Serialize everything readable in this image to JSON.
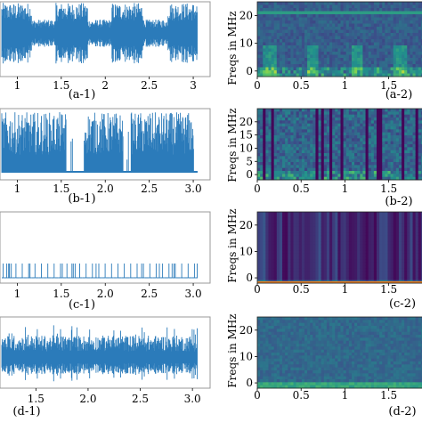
{
  "chart_data": [
    {
      "id": "a-1",
      "type": "line",
      "caption": "(a-1)",
      "xticks": [
        "1",
        "1.5",
        "2",
        "2.5",
        "3"
      ],
      "xlim": [
        0.5,
        3.05
      ],
      "series_color": "#2b7bba",
      "pattern": "bursty_dense"
    },
    {
      "id": "a-2",
      "type": "heatmap",
      "caption": "(a-2)",
      "ylabel": "Freqs in MHz",
      "xticks": [
        "0",
        "0.5",
        "1",
        "1.5"
      ],
      "yticks": [
        "0",
        "10",
        "20"
      ],
      "xlim": [
        0,
        1.9
      ],
      "ylim": [
        -2,
        25
      ],
      "colormap": "viridis",
      "pattern": "bursty"
    },
    {
      "id": "b-1",
      "type": "line",
      "caption": "(b-1)",
      "xticks": [
        "1",
        "1.5",
        "2.0",
        "2.5",
        "3.0"
      ],
      "xlim": [
        0.5,
        3.05
      ],
      "series_color": "#2b7bba",
      "pattern": "spiky_clusters"
    },
    {
      "id": "b-2",
      "type": "heatmap",
      "caption": "(b-2)",
      "ylabel": "Freqs in MHz",
      "xticks": [
        "0",
        "0.5",
        "1",
        "1.5"
      ],
      "yticks": [
        "0",
        "5",
        "10",
        "15",
        "20"
      ],
      "xlim": [
        0,
        1.9
      ],
      "ylim": [
        -2,
        25
      ],
      "colormap": "viridis",
      "pattern": "dark_vertical"
    },
    {
      "id": "c-1",
      "type": "line",
      "caption": "(c-1)",
      "xticks": [
        "1",
        "1.5",
        "2.0",
        "2.5",
        "3.0"
      ],
      "xlim": [
        0.5,
        3.05
      ],
      "series_color": "#2b7bba",
      "pattern": "sparse_pulses"
    },
    {
      "id": "c-2",
      "type": "heatmap",
      "caption": "(c-2)",
      "ylabel": "Freqs in MHz",
      "xticks": [
        "0",
        "0.5",
        "1",
        "1.5"
      ],
      "yticks": [
        "0",
        "10",
        "20"
      ],
      "xlim": [
        0,
        1.9
      ],
      "ylim": [
        -2,
        25
      ],
      "colormap": "viridis",
      "pattern": "purple_stripes"
    },
    {
      "id": "d-1",
      "type": "line",
      "caption": "(d-1)",
      "xticks": [
        "1.5",
        "2.0",
        "2.5",
        "3.0"
      ],
      "xlim": [
        0.9,
        3.05
      ],
      "series_color": "#2b7bba",
      "pattern": "noise"
    },
    {
      "id": "d-2",
      "type": "heatmap",
      "caption": "(d-2)",
      "ylabel": "Freqs in MHz",
      "xticks": [
        "0",
        "0.5",
        "1",
        "1.5"
      ],
      "yticks": [
        "0",
        "10",
        "20"
      ],
      "xlim": [
        0,
        1.9
      ],
      "ylim": [
        -2,
        25
      ],
      "colormap": "viridis",
      "pattern": "uniform_noise"
    }
  ]
}
